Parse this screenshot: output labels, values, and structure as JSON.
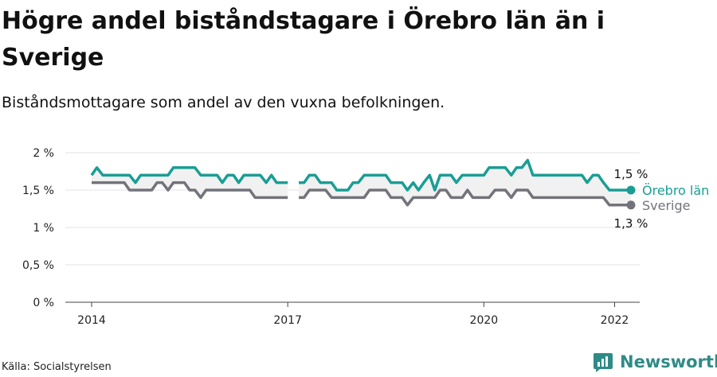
{
  "header": {
    "title": "Högre andel biståndstagare i Örebro län än i Sverige",
    "subtitle": "Biståndsmottagare som andel av den vuxna befolkningen."
  },
  "footer": {
    "source": "Källa: Socialstyrelsen",
    "brand": "Newsworthy"
  },
  "colors": {
    "orebro": "#1a9e94",
    "sverige": "#73737b",
    "brand": "#2e8b87"
  },
  "chart_data": {
    "type": "line",
    "title": "Högre andel biståndstagare i Örebro län än i Sverige",
    "subtitle": "Biståndsmottagare som andel av den vuxna befolkningen.",
    "ylim": [
      0,
      2
    ],
    "yticks": [
      0,
      0.5,
      1,
      1.5,
      2
    ],
    "ytick_labels": [
      "0 %",
      "0,5 %",
      "1 %",
      "1,5 %",
      "2 %"
    ],
    "xticks": [
      2014,
      2017,
      2020,
      2022
    ],
    "xtick_labels": [
      "2014",
      "2017",
      "2020",
      "2022"
    ],
    "grid": true,
    "series": [
      {
        "name": "Örebro län",
        "color": "#1a9e94",
        "end_label": "1,5 %",
        "points": [
          [
            2014.0,
            1.7
          ],
          [
            2014.08,
            1.8
          ],
          [
            2014.17,
            1.7
          ],
          [
            2014.25,
            1.7
          ],
          [
            2014.33,
            1.7
          ],
          [
            2014.42,
            1.7
          ],
          [
            2014.5,
            1.7
          ],
          [
            2014.58,
            1.7
          ],
          [
            2014.67,
            1.6
          ],
          [
            2014.75,
            1.7
          ],
          [
            2014.83,
            1.7
          ],
          [
            2014.92,
            1.7
          ],
          [
            2015.0,
            1.7
          ],
          [
            2015.08,
            1.7
          ],
          [
            2015.17,
            1.7
          ],
          [
            2015.25,
            1.8
          ],
          [
            2015.33,
            1.8
          ],
          [
            2015.42,
            1.8
          ],
          [
            2015.5,
            1.8
          ],
          [
            2015.58,
            1.8
          ],
          [
            2015.67,
            1.7
          ],
          [
            2015.75,
            1.7
          ],
          [
            2015.83,
            1.7
          ],
          [
            2015.92,
            1.7
          ],
          [
            2016.0,
            1.6
          ],
          [
            2016.08,
            1.7
          ],
          [
            2016.17,
            1.7
          ],
          [
            2016.25,
            1.6
          ],
          [
            2016.33,
            1.7
          ],
          [
            2016.42,
            1.7
          ],
          [
            2016.5,
            1.7
          ],
          [
            2016.58,
            1.7
          ],
          [
            2016.67,
            1.6
          ],
          [
            2016.75,
            1.7
          ],
          [
            2016.83,
            1.6
          ],
          [
            2016.92,
            1.6
          ],
          [
            2017.0,
            1.6
          ],
          null,
          [
            2017.17,
            1.6
          ],
          [
            2017.25,
            1.6
          ],
          [
            2017.33,
            1.7
          ],
          [
            2017.42,
            1.7
          ],
          [
            2017.5,
            1.6
          ],
          [
            2017.58,
            1.6
          ],
          [
            2017.67,
            1.6
          ],
          [
            2017.75,
            1.5
          ],
          [
            2017.83,
            1.5
          ],
          [
            2017.92,
            1.5
          ],
          [
            2018.0,
            1.6
          ],
          [
            2018.08,
            1.6
          ],
          [
            2018.17,
            1.7
          ],
          [
            2018.25,
            1.7
          ],
          [
            2018.33,
            1.7
          ],
          [
            2018.42,
            1.7
          ],
          [
            2018.5,
            1.7
          ],
          [
            2018.58,
            1.6
          ],
          [
            2018.67,
            1.6
          ],
          [
            2018.75,
            1.6
          ],
          [
            2018.83,
            1.5
          ],
          [
            2018.92,
            1.6
          ],
          [
            2019.0,
            1.5
          ],
          [
            2019.08,
            1.6
          ],
          [
            2019.17,
            1.7
          ],
          [
            2019.25,
            1.5
          ],
          [
            2019.33,
            1.7
          ],
          [
            2019.42,
            1.7
          ],
          [
            2019.5,
            1.7
          ],
          [
            2019.58,
            1.6
          ],
          [
            2019.67,
            1.7
          ],
          [
            2019.75,
            1.7
          ],
          [
            2019.83,
            1.7
          ],
          [
            2019.92,
            1.7
          ],
          [
            2020.0,
            1.7
          ],
          [
            2020.08,
            1.8
          ],
          [
            2020.17,
            1.8
          ],
          [
            2020.25,
            1.8
          ],
          [
            2020.33,
            1.8
          ],
          [
            2020.42,
            1.7
          ],
          [
            2020.5,
            1.8
          ],
          [
            2020.58,
            1.8
          ],
          [
            2020.67,
            1.9
          ],
          [
            2020.75,
            1.7
          ],
          [
            2020.83,
            1.7
          ],
          [
            2020.92,
            1.7
          ],
          [
            2021.0,
            1.7
          ],
          [
            2021.08,
            1.7
          ],
          [
            2021.17,
            1.7
          ],
          [
            2021.25,
            1.7
          ],
          [
            2021.33,
            1.7
          ],
          [
            2021.42,
            1.7
          ],
          [
            2021.5,
            1.7
          ],
          [
            2021.58,
            1.6
          ],
          [
            2021.67,
            1.7
          ],
          [
            2021.75,
            1.7
          ],
          [
            2021.83,
            1.6
          ],
          [
            2021.92,
            1.5
          ],
          [
            2022.0,
            1.5
          ],
          [
            2022.08,
            1.5
          ],
          [
            2022.17,
            1.5
          ],
          [
            2022.25,
            1.5
          ]
        ]
      },
      {
        "name": "Sverige",
        "color": "#73737b",
        "end_label": "1,3 %",
        "points": [
          [
            2014.0,
            1.6
          ],
          [
            2014.08,
            1.6
          ],
          [
            2014.17,
            1.6
          ],
          [
            2014.25,
            1.6
          ],
          [
            2014.33,
            1.6
          ],
          [
            2014.42,
            1.6
          ],
          [
            2014.5,
            1.6
          ],
          [
            2014.58,
            1.5
          ],
          [
            2014.67,
            1.5
          ],
          [
            2014.75,
            1.5
          ],
          [
            2014.83,
            1.5
          ],
          [
            2014.92,
            1.5
          ],
          [
            2015.0,
            1.6
          ],
          [
            2015.08,
            1.6
          ],
          [
            2015.17,
            1.5
          ],
          [
            2015.25,
            1.6
          ],
          [
            2015.33,
            1.6
          ],
          [
            2015.42,
            1.6
          ],
          [
            2015.5,
            1.5
          ],
          [
            2015.58,
            1.5
          ],
          [
            2015.67,
            1.4
          ],
          [
            2015.75,
            1.5
          ],
          [
            2015.83,
            1.5
          ],
          [
            2015.92,
            1.5
          ],
          [
            2016.0,
            1.5
          ],
          [
            2016.08,
            1.5
          ],
          [
            2016.17,
            1.5
          ],
          [
            2016.25,
            1.5
          ],
          [
            2016.33,
            1.5
          ],
          [
            2016.42,
            1.5
          ],
          [
            2016.5,
            1.4
          ],
          [
            2016.58,
            1.4
          ],
          [
            2016.67,
            1.4
          ],
          [
            2016.75,
            1.4
          ],
          [
            2016.83,
            1.4
          ],
          [
            2016.92,
            1.4
          ],
          [
            2017.0,
            1.4
          ],
          null,
          [
            2017.17,
            1.4
          ],
          [
            2017.25,
            1.4
          ],
          [
            2017.33,
            1.5
          ],
          [
            2017.42,
            1.5
          ],
          [
            2017.5,
            1.5
          ],
          [
            2017.58,
            1.5
          ],
          [
            2017.67,
            1.4
          ],
          [
            2017.75,
            1.4
          ],
          [
            2017.83,
            1.4
          ],
          [
            2017.92,
            1.4
          ],
          [
            2018.0,
            1.4
          ],
          [
            2018.08,
            1.4
          ],
          [
            2018.17,
            1.4
          ],
          [
            2018.25,
            1.5
          ],
          [
            2018.33,
            1.5
          ],
          [
            2018.42,
            1.5
          ],
          [
            2018.5,
            1.5
          ],
          [
            2018.58,
            1.4
          ],
          [
            2018.67,
            1.4
          ],
          [
            2018.75,
            1.4
          ],
          [
            2018.83,
            1.3
          ],
          [
            2018.92,
            1.4
          ],
          [
            2019.0,
            1.4
          ],
          [
            2019.08,
            1.4
          ],
          [
            2019.17,
            1.4
          ],
          [
            2019.25,
            1.4
          ],
          [
            2019.33,
            1.5
          ],
          [
            2019.42,
            1.5
          ],
          [
            2019.5,
            1.4
          ],
          [
            2019.58,
            1.4
          ],
          [
            2019.67,
            1.4
          ],
          [
            2019.75,
            1.5
          ],
          [
            2019.83,
            1.4
          ],
          [
            2019.92,
            1.4
          ],
          [
            2020.0,
            1.4
          ],
          [
            2020.08,
            1.4
          ],
          [
            2020.17,
            1.5
          ],
          [
            2020.25,
            1.5
          ],
          [
            2020.33,
            1.5
          ],
          [
            2020.42,
            1.4
          ],
          [
            2020.5,
            1.5
          ],
          [
            2020.58,
            1.5
          ],
          [
            2020.67,
            1.5
          ],
          [
            2020.75,
            1.4
          ],
          [
            2020.83,
            1.4
          ],
          [
            2020.92,
            1.4
          ],
          [
            2021.0,
            1.4
          ],
          [
            2021.08,
            1.4
          ],
          [
            2021.17,
            1.4
          ],
          [
            2021.25,
            1.4
          ],
          [
            2021.33,
            1.4
          ],
          [
            2021.42,
            1.4
          ],
          [
            2021.5,
            1.4
          ],
          [
            2021.58,
            1.4
          ],
          [
            2021.67,
            1.4
          ],
          [
            2021.75,
            1.4
          ],
          [
            2021.83,
            1.4
          ],
          [
            2021.92,
            1.3
          ],
          [
            2022.0,
            1.3
          ],
          [
            2022.08,
            1.3
          ],
          [
            2022.17,
            1.3
          ],
          [
            2022.25,
            1.3
          ]
        ]
      }
    ]
  }
}
